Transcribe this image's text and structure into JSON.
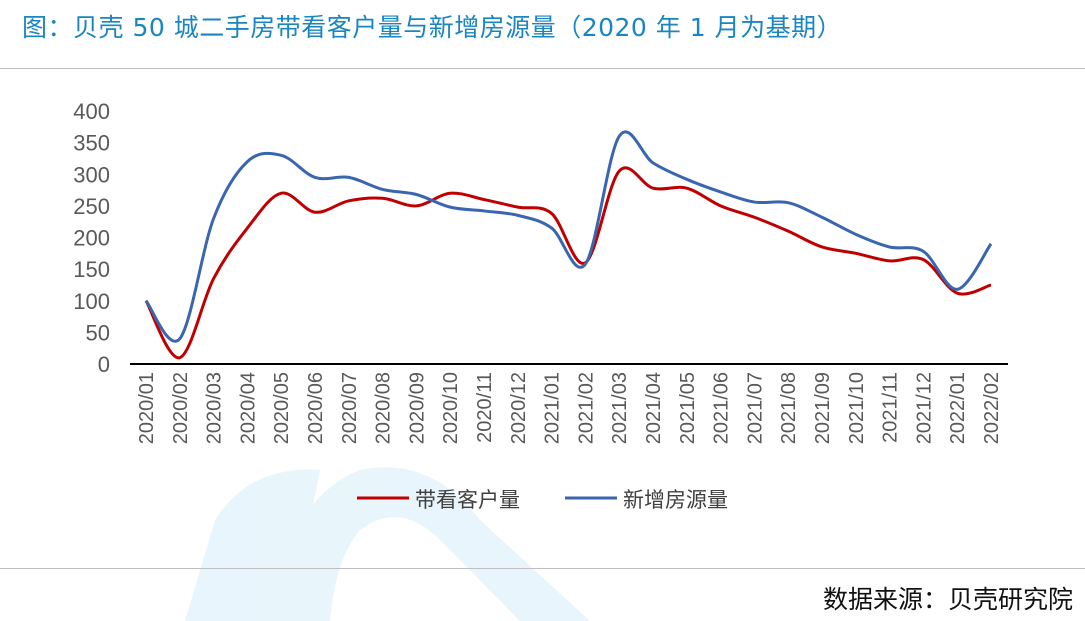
{
  "title": "图：贝壳 50 城二手房带看客户量与新增房源量（2020 年 1 月为基期）",
  "source": "数据来源：贝壳研究院",
  "chart_data": {
    "type": "line",
    "smooth": true,
    "categories": [
      "2020/01",
      "2020/02",
      "2020/03",
      "2020/04",
      "2020/05",
      "2020/06",
      "2020/07",
      "2020/08",
      "2020/09",
      "2020/10",
      "2020/11",
      "2020/12",
      "2021/01",
      "2021/02",
      "2021/03",
      "2021/04",
      "2021/05",
      "2021/06",
      "2021/07",
      "2021/08",
      "2021/09",
      "2021/10",
      "2021/11",
      "2021/12",
      "2022/01",
      "2022/02"
    ],
    "series": [
      {
        "name": "带看客户量",
        "color": "#c00000",
        "values": [
          100,
          10,
          135,
          215,
          270,
          240,
          258,
          262,
          250,
          270,
          260,
          248,
          238,
          160,
          305,
          278,
          278,
          250,
          232,
          210,
          185,
          175,
          163,
          165,
          112,
          125
        ]
      },
      {
        "name": "新增房源量",
        "color": "#3a66b0",
        "values": [
          100,
          40,
          230,
          320,
          330,
          295,
          295,
          276,
          268,
          248,
          242,
          235,
          215,
          158,
          360,
          318,
          292,
          272,
          256,
          255,
          232,
          205,
          185,
          178,
          118,
          190
        ]
      }
    ],
    "ylim": [
      0,
      400
    ],
    "yticks": [
      "0",
      "50",
      "100",
      "150",
      "200",
      "250",
      "300",
      "350",
      "400"
    ],
    "grid": false,
    "legend": "bottom"
  }
}
